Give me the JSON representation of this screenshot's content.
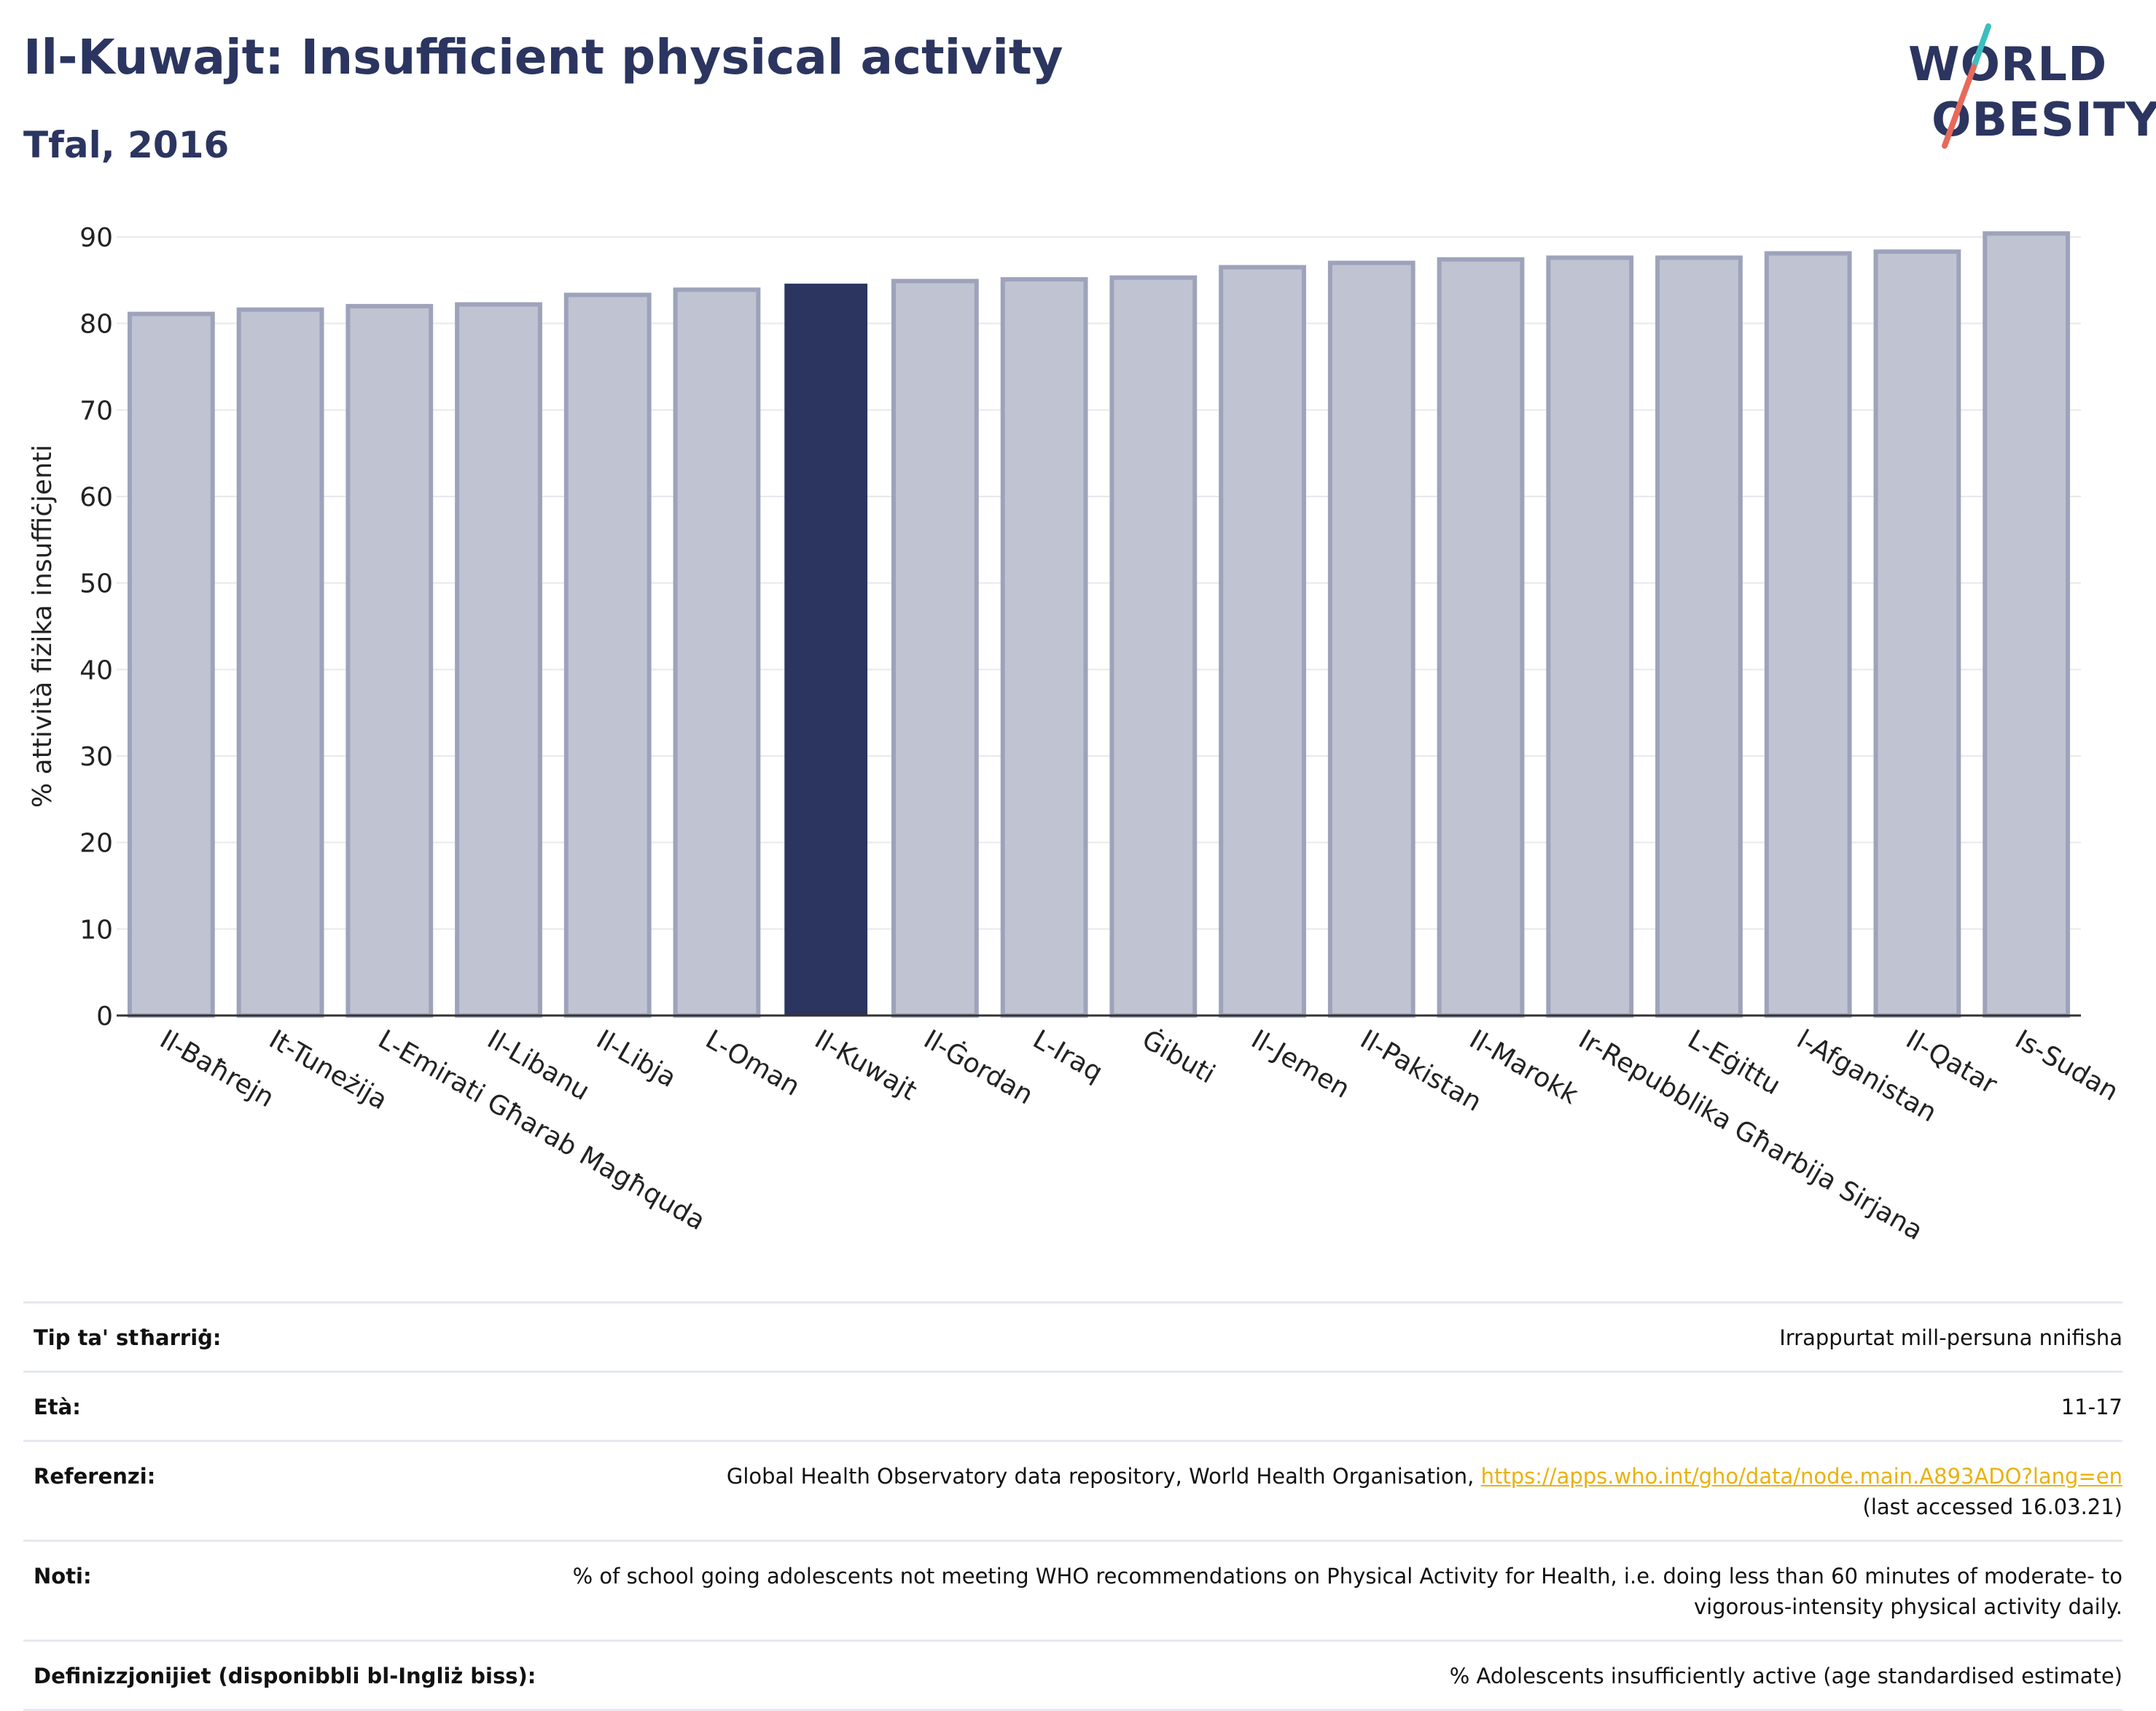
{
  "header": {
    "title": "Il-Kuwajt: Insufficient physical activity",
    "subtitle": "Tfal, 2016"
  },
  "logo": {
    "line1": "WORLD",
    "line2": "OBESITY",
    "colors": {
      "text": "#2b3560",
      "slash_top": "#3bbfbf",
      "slash_bottom": "#e8695a"
    }
  },
  "chart_data": {
    "type": "bar",
    "title": "",
    "xlabel": "",
    "ylabel": "% attività fiżika insuffiċjenti",
    "ylim": [
      0,
      90
    ],
    "yticks": [
      0,
      10,
      20,
      30,
      40,
      50,
      60,
      70,
      80,
      90
    ],
    "grid": true,
    "legend": "none",
    "highlight": "Il-Kuwajt",
    "colors": {
      "bar": "#c0c3d1",
      "bar_edge": "#9ea3bb",
      "highlight": "#2b3560",
      "grid": "#e8e8ee",
      "axis": "#333333"
    },
    "categories": [
      "Il-Baħrejn",
      "It-Tuneżija",
      "L-Emirati Għarab Magħquda",
      "Il-Libanu",
      "Il-Libja",
      "L-Oman",
      "Il-Kuwajt",
      "Il-Ġordan",
      "L-Iraq",
      "Ġibuti",
      "Il-Jemen",
      "Il-Pakistan",
      "Il-Marokk",
      "Ir-Repubblika Għarbija Sirjana",
      "L-Eġittu",
      "l-Afganistan",
      "Il-Qatar",
      "Is-Sudan"
    ],
    "values": [
      81.1,
      81.6,
      82.0,
      82.2,
      83.3,
      83.9,
      84.6,
      84.9,
      85.1,
      85.3,
      86.5,
      87.0,
      87.4,
      87.6,
      87.6,
      88.1,
      88.3,
      90.4
    ]
  },
  "info": {
    "rows": [
      {
        "label": "Tip ta' stħarriġ:",
        "value": "Irrappurtat mill-persuna nnifisha"
      },
      {
        "label": "Età:",
        "value": "11-17"
      },
      {
        "label": "Referenzi:",
        "value": "Global Health Observatory data repository, World Health Organisation, ",
        "link": "https://apps.who.int/gho/data/node.main.A893ADO?lang=en",
        "value2": "(last accessed 16.03.21)"
      },
      {
        "label": "Noti:",
        "value": "% of school going adolescents not meeting WHO recommendations on Physical Activity for Health, i.e. doing less than 60 minutes of moderate- to vigorous-intensity physical activity daily."
      },
      {
        "label": "Definizzjonijiet (disponibbli bl-Ingliż biss):",
        "value": "% Adolescents insufficiently active (age standardised estimate)"
      }
    ]
  }
}
